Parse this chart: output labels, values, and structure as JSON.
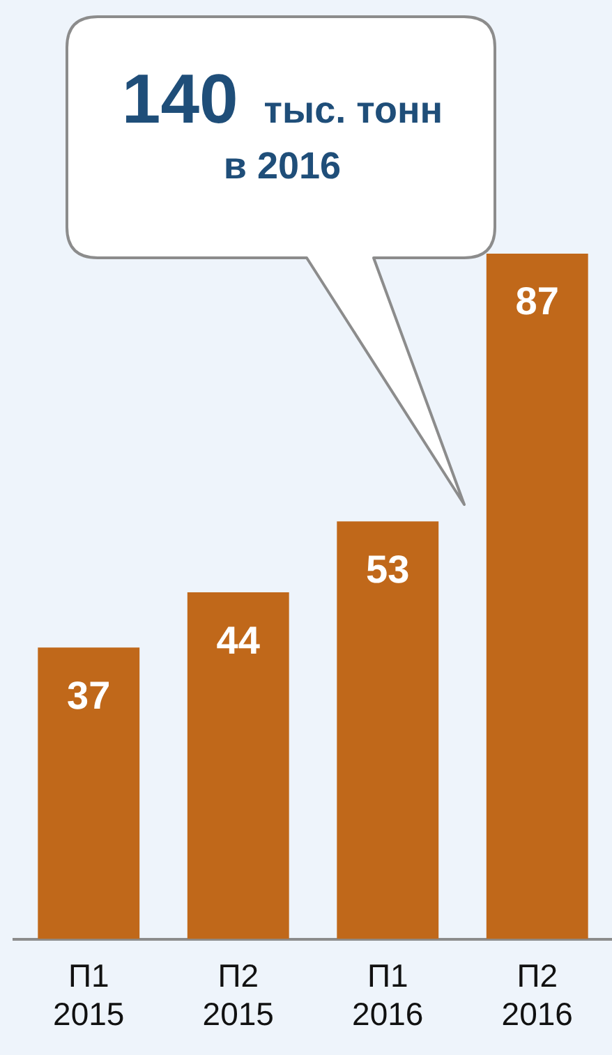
{
  "chart_data": {
    "type": "bar",
    "categories": [
      "П1\n2015",
      "П2\n2015",
      "П1\n2016",
      "П2\n2016"
    ],
    "values": [
      37,
      44,
      53,
      87
    ],
    "color": "#c0681a",
    "data_labels": true,
    "grid": false,
    "legend": false,
    "annotations": [
      "140 тыс. тонн\nв 2016"
    ]
  }
}
